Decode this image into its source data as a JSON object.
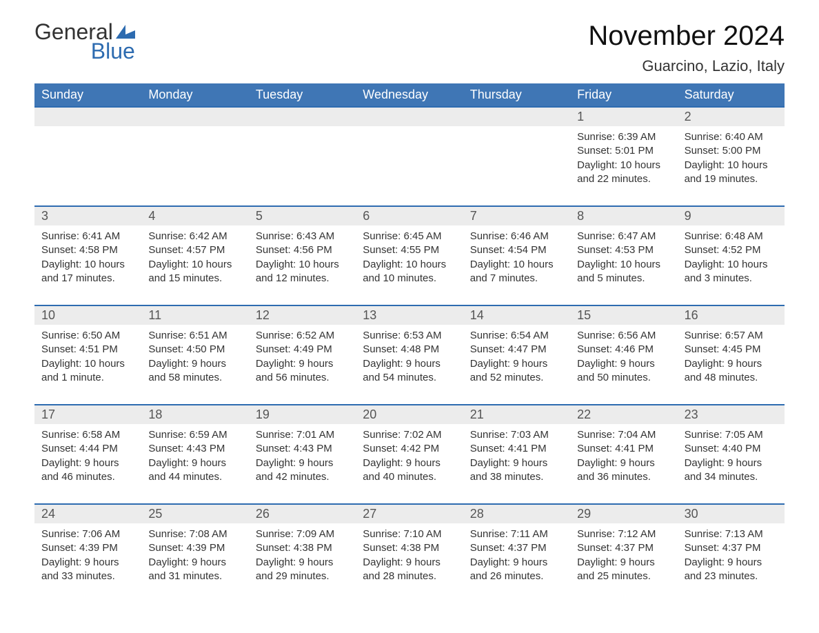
{
  "logo": {
    "top": "General",
    "bottom": "Blue"
  },
  "title": "November 2024",
  "location": "Guarcino, Lazio, Italy",
  "colors": {
    "header_bg": "#3f76b5",
    "header_text": "#ffffff",
    "band_bg": "#ececec",
    "band_border": "#2d6bb0",
    "logo_blue": "#2d6bb0",
    "text": "#333333",
    "background": "#ffffff"
  },
  "weekdays": [
    "Sunday",
    "Monday",
    "Tuesday",
    "Wednesday",
    "Thursday",
    "Friday",
    "Saturday"
  ],
  "weeks": [
    [
      null,
      null,
      null,
      null,
      null,
      {
        "n": "1",
        "sunrise": "Sunrise: 6:39 AM",
        "sunset": "Sunset: 5:01 PM",
        "daylight": "Daylight: 10 hours and 22 minutes."
      },
      {
        "n": "2",
        "sunrise": "Sunrise: 6:40 AM",
        "sunset": "Sunset: 5:00 PM",
        "daylight": "Daylight: 10 hours and 19 minutes."
      }
    ],
    [
      {
        "n": "3",
        "sunrise": "Sunrise: 6:41 AM",
        "sunset": "Sunset: 4:58 PM",
        "daylight": "Daylight: 10 hours and 17 minutes."
      },
      {
        "n": "4",
        "sunrise": "Sunrise: 6:42 AM",
        "sunset": "Sunset: 4:57 PM",
        "daylight": "Daylight: 10 hours and 15 minutes."
      },
      {
        "n": "5",
        "sunrise": "Sunrise: 6:43 AM",
        "sunset": "Sunset: 4:56 PM",
        "daylight": "Daylight: 10 hours and 12 minutes."
      },
      {
        "n": "6",
        "sunrise": "Sunrise: 6:45 AM",
        "sunset": "Sunset: 4:55 PM",
        "daylight": "Daylight: 10 hours and 10 minutes."
      },
      {
        "n": "7",
        "sunrise": "Sunrise: 6:46 AM",
        "sunset": "Sunset: 4:54 PM",
        "daylight": "Daylight: 10 hours and 7 minutes."
      },
      {
        "n": "8",
        "sunrise": "Sunrise: 6:47 AM",
        "sunset": "Sunset: 4:53 PM",
        "daylight": "Daylight: 10 hours and 5 minutes."
      },
      {
        "n": "9",
        "sunrise": "Sunrise: 6:48 AM",
        "sunset": "Sunset: 4:52 PM",
        "daylight": "Daylight: 10 hours and 3 minutes."
      }
    ],
    [
      {
        "n": "10",
        "sunrise": "Sunrise: 6:50 AM",
        "sunset": "Sunset: 4:51 PM",
        "daylight": "Daylight: 10 hours and 1 minute."
      },
      {
        "n": "11",
        "sunrise": "Sunrise: 6:51 AM",
        "sunset": "Sunset: 4:50 PM",
        "daylight": "Daylight: 9 hours and 58 minutes."
      },
      {
        "n": "12",
        "sunrise": "Sunrise: 6:52 AM",
        "sunset": "Sunset: 4:49 PM",
        "daylight": "Daylight: 9 hours and 56 minutes."
      },
      {
        "n": "13",
        "sunrise": "Sunrise: 6:53 AM",
        "sunset": "Sunset: 4:48 PM",
        "daylight": "Daylight: 9 hours and 54 minutes."
      },
      {
        "n": "14",
        "sunrise": "Sunrise: 6:54 AM",
        "sunset": "Sunset: 4:47 PM",
        "daylight": "Daylight: 9 hours and 52 minutes."
      },
      {
        "n": "15",
        "sunrise": "Sunrise: 6:56 AM",
        "sunset": "Sunset: 4:46 PM",
        "daylight": "Daylight: 9 hours and 50 minutes."
      },
      {
        "n": "16",
        "sunrise": "Sunrise: 6:57 AM",
        "sunset": "Sunset: 4:45 PM",
        "daylight": "Daylight: 9 hours and 48 minutes."
      }
    ],
    [
      {
        "n": "17",
        "sunrise": "Sunrise: 6:58 AM",
        "sunset": "Sunset: 4:44 PM",
        "daylight": "Daylight: 9 hours and 46 minutes."
      },
      {
        "n": "18",
        "sunrise": "Sunrise: 6:59 AM",
        "sunset": "Sunset: 4:43 PM",
        "daylight": "Daylight: 9 hours and 44 minutes."
      },
      {
        "n": "19",
        "sunrise": "Sunrise: 7:01 AM",
        "sunset": "Sunset: 4:43 PM",
        "daylight": "Daylight: 9 hours and 42 minutes."
      },
      {
        "n": "20",
        "sunrise": "Sunrise: 7:02 AM",
        "sunset": "Sunset: 4:42 PM",
        "daylight": "Daylight: 9 hours and 40 minutes."
      },
      {
        "n": "21",
        "sunrise": "Sunrise: 7:03 AM",
        "sunset": "Sunset: 4:41 PM",
        "daylight": "Daylight: 9 hours and 38 minutes."
      },
      {
        "n": "22",
        "sunrise": "Sunrise: 7:04 AM",
        "sunset": "Sunset: 4:41 PM",
        "daylight": "Daylight: 9 hours and 36 minutes."
      },
      {
        "n": "23",
        "sunrise": "Sunrise: 7:05 AM",
        "sunset": "Sunset: 4:40 PM",
        "daylight": "Daylight: 9 hours and 34 minutes."
      }
    ],
    [
      {
        "n": "24",
        "sunrise": "Sunrise: 7:06 AM",
        "sunset": "Sunset: 4:39 PM",
        "daylight": "Daylight: 9 hours and 33 minutes."
      },
      {
        "n": "25",
        "sunrise": "Sunrise: 7:08 AM",
        "sunset": "Sunset: 4:39 PM",
        "daylight": "Daylight: 9 hours and 31 minutes."
      },
      {
        "n": "26",
        "sunrise": "Sunrise: 7:09 AM",
        "sunset": "Sunset: 4:38 PM",
        "daylight": "Daylight: 9 hours and 29 minutes."
      },
      {
        "n": "27",
        "sunrise": "Sunrise: 7:10 AM",
        "sunset": "Sunset: 4:38 PM",
        "daylight": "Daylight: 9 hours and 28 minutes."
      },
      {
        "n": "28",
        "sunrise": "Sunrise: 7:11 AM",
        "sunset": "Sunset: 4:37 PM",
        "daylight": "Daylight: 9 hours and 26 minutes."
      },
      {
        "n": "29",
        "sunrise": "Sunrise: 7:12 AM",
        "sunset": "Sunset: 4:37 PM",
        "daylight": "Daylight: 9 hours and 25 minutes."
      },
      {
        "n": "30",
        "sunrise": "Sunrise: 7:13 AM",
        "sunset": "Sunset: 4:37 PM",
        "daylight": "Daylight: 9 hours and 23 minutes."
      }
    ]
  ]
}
